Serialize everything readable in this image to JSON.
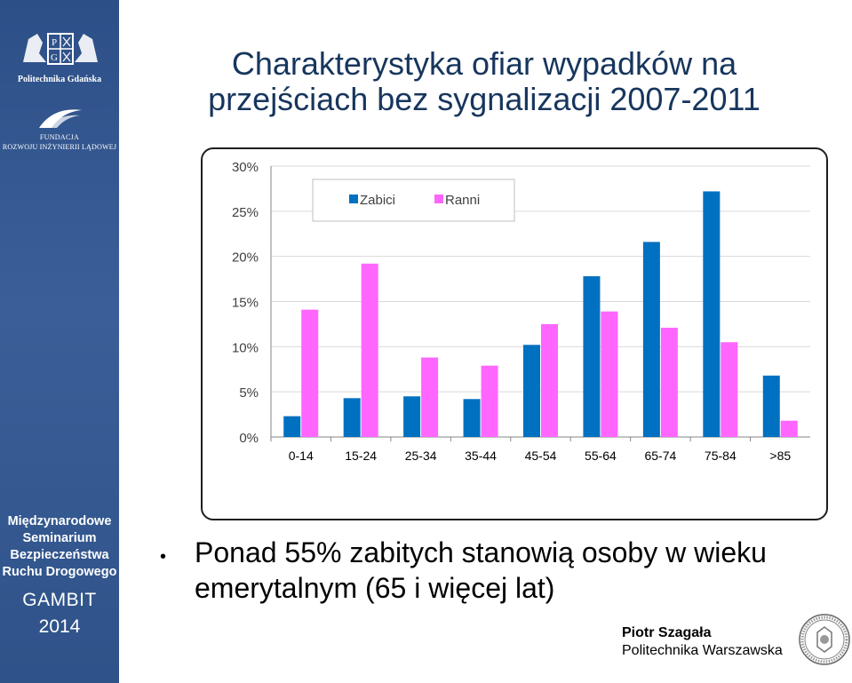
{
  "sidebar": {
    "logo_caption": "Politechnika  Gdańska",
    "logo_letters": [
      "P",
      "G"
    ],
    "foundation_line1": "FUNDACJA",
    "foundation_line2": "ROZWOJU INŻYNIERII LĄDOWEJ",
    "seminar_line1": "Międzynarodowe",
    "seminar_line2": "Seminarium",
    "seminar_line3": "Bezpieczeństwa",
    "seminar_line4": "Ruchu Drogowego",
    "gambit": "GAMBIT",
    "year": "2014"
  },
  "slide": {
    "title_line1": "Charakterystyka ofiar wypadków na",
    "title_line2": "przejściach bez sygnalizacji 2007-2011",
    "bullet_line1": "Ponad 55% zabitych stanowią osoby w wieku",
    "bullet_line2": "emerytalnym (65 i więcej lat)",
    "author_name": "Piotr Szagała",
    "author_institution": "Politechnika Warszawska"
  },
  "colors": {
    "sidebar": "#35578f",
    "title": "#17365d",
    "zabici": "#0070c0",
    "ranni": "#ff66ff"
  },
  "chart_data": {
    "type": "bar",
    "categories": [
      "0-14",
      "15-24",
      "25-34",
      "35-44",
      "45-54",
      "55-64",
      "65-74",
      "75-84",
      ">85"
    ],
    "series": [
      {
        "name": "Zabici",
        "color": "#0070c0",
        "values": [
          2.3,
          4.3,
          4.5,
          4.2,
          10.2,
          17.8,
          21.6,
          27.2,
          6.8
        ]
      },
      {
        "name": "Ranni",
        "color": "#ff66ff",
        "values": [
          14.1,
          19.2,
          8.8,
          7.9,
          12.5,
          13.9,
          12.1,
          10.5,
          1.8
        ]
      }
    ],
    "yticks": [
      "0%",
      "5%",
      "10%",
      "15%",
      "20%",
      "25%",
      "30%"
    ],
    "ylim": [
      0,
      30
    ],
    "grid": true,
    "legend_position": "top-left"
  }
}
